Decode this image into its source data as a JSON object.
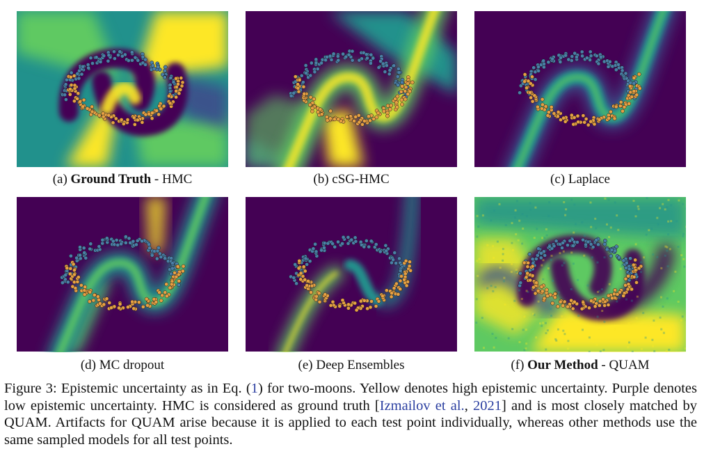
{
  "colors": {
    "viridis_purple": "#440154",
    "viridis_blue": "#3b528b",
    "viridis_teal": "#21918c",
    "viridis_green": "#5ec962",
    "viridis_yellow": "#fde725",
    "class_blue": "#4a7fa7",
    "class_orange": "#e6a043",
    "citation": "#2a3ea0"
  },
  "panels": [
    {
      "id": "a",
      "prefix": "(a) ",
      "bold": "Ground Truth",
      "suffix": " - HMC",
      "style": "gt"
    },
    {
      "id": "b",
      "prefix": "(b) ",
      "bold": "",
      "suffix": "cSG-HMC",
      "style": "csg"
    },
    {
      "id": "c",
      "prefix": "(c) ",
      "bold": "",
      "suffix": "Laplace",
      "style": "laplace"
    },
    {
      "id": "d",
      "prefix": "(d) ",
      "bold": "",
      "suffix": "MC dropout",
      "style": "dropout"
    },
    {
      "id": "e",
      "prefix": "(e) ",
      "bold": "",
      "suffix": "Deep Ensembles",
      "style": "ensembles"
    },
    {
      "id": "f",
      "prefix": "(f) ",
      "bold": "Our Method",
      "suffix": " - QUAM",
      "style": "quam"
    }
  ],
  "caption": {
    "part1": "Figure 3:  Epistemic uncertainty as in Eq. (",
    "eq_ref": "1",
    "part2": ") for two-moons.  Yellow denotes high epistemic uncertainty. Purple denotes low epistemic uncertainty. HMC is considered as ground truth [",
    "cite1": "Izmailov et al.",
    "sep": ", ",
    "cite_year": "2021",
    "part3": "] and is most closely matched by QUAM. Artifacts for QUAM arise because it is applied to each test point individually, whereas other methods use the same sampled models for all test points."
  }
}
